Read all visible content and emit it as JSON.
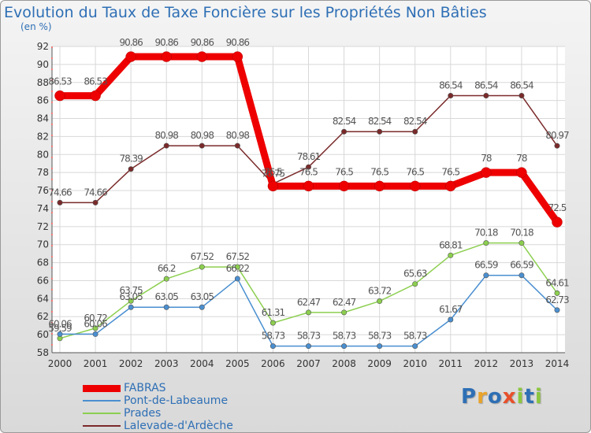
{
  "header": {
    "title": "Evolution du Taux de Taxe Foncière sur les Propriétés Non Bâties",
    "subtitle": "(en %)"
  },
  "logo": {
    "text": "Proxiti",
    "letter_colors": [
      "#2e6fb5",
      "#e8a32b",
      "#2e6fb5",
      "#e84f2b",
      "#8cc63f",
      "#2e6fb5",
      "#8cc63f"
    ]
  },
  "chart_data": {
    "type": "line",
    "title": "Evolution du Taux de Taxe Foncière sur les Propriétés Non Bâties",
    "ylabel": "(en %)",
    "xlabel": "",
    "ylim": [
      58,
      92
    ],
    "ytick_step": 2,
    "grid": true,
    "x": [
      "2000",
      "2001",
      "2002",
      "2003",
      "2004",
      "2005",
      "2006",
      "2007",
      "2008",
      "2009",
      "2010",
      "2011",
      "2012",
      "2013",
      "2014"
    ],
    "series": [
      {
        "name": "FABRAS",
        "color": "#ee0000",
        "values": [
          86.53,
          86.53,
          90.86,
          90.86,
          90.86,
          90.86,
          76.5,
          76.5,
          76.5,
          76.5,
          76.5,
          76.5,
          78,
          78,
          72.5
        ],
        "labels": [
          "86.53",
          "86.53",
          "90.86",
          "90.86",
          "90.86",
          "90.86",
          "76.5",
          "76.5",
          "76.5",
          "76.5",
          "76.5",
          "76.5",
          "78",
          "78",
          "72.5"
        ]
      },
      {
        "name": "Pont-de-Labeaume",
        "color": "#4a8fd0",
        "values": [
          60.06,
          60.06,
          63.05,
          63.05,
          63.05,
          66.22,
          58.73,
          58.73,
          58.73,
          58.73,
          58.73,
          61.67,
          66.59,
          66.59,
          62.73
        ],
        "labels": [
          "60.06",
          "60.06",
          "63.05",
          "63.05",
          "63.05",
          "66.22",
          "58.73",
          "58.73",
          "58.73",
          "58.73",
          "58.73",
          "61.67",
          "66.59",
          "66.59",
          "62.73"
        ]
      },
      {
        "name": "Prades",
        "color": "#8ccf4f",
        "values": [
          59.59,
          60.72,
          63.75,
          66.2,
          67.52,
          67.52,
          61.31,
          62.47,
          62.47,
          63.72,
          65.63,
          68.81,
          70.18,
          70.18,
          64.61
        ],
        "labels": [
          "59.59",
          "60.72",
          "63.75",
          "66.2",
          "67.52",
          "67.52",
          "61.31",
          "62.47",
          "62.47",
          "63.72",
          "65.63",
          "68.81",
          "70.18",
          "70.18",
          "64.61"
        ]
      },
      {
        "name": "Lalevade-d'Ardèche",
        "color": "#7a2a2a",
        "values": [
          74.66,
          74.66,
          78.39,
          80.98,
          80.98,
          80.98,
          76.75,
          78.61,
          82.54,
          82.54,
          82.54,
          86.54,
          86.54,
          86.54,
          80.97
        ],
        "labels": [
          "74.66",
          "74.66",
          "78.39",
          "80.98",
          "80.98",
          "80.98",
          "76.75",
          "78.61",
          "82.54",
          "82.54",
          "82.54",
          "86.54",
          "86.54",
          "86.54",
          "80.97"
        ]
      }
    ],
    "legend": [
      "FABRAS",
      "Pont-de-Labeaume",
      "Prades",
      "Lalevade-d'Ardèche"
    ]
  }
}
